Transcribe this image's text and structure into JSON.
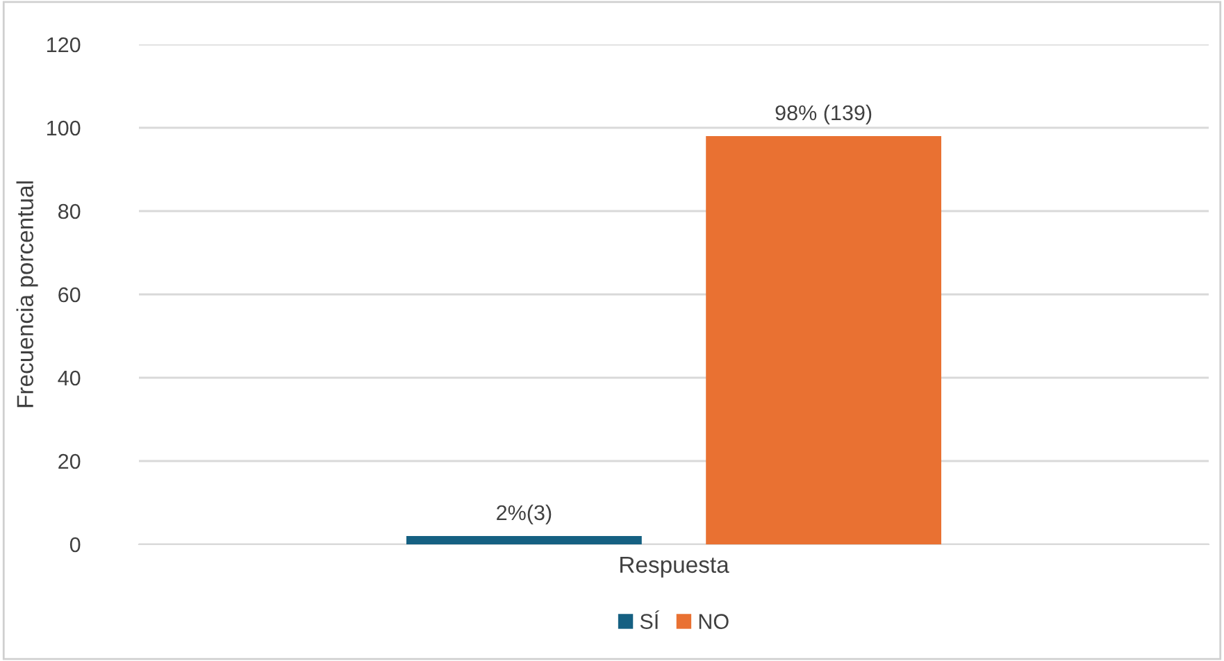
{
  "chart_data": {
    "type": "bar",
    "ylabel": "Frecuencia porcentual",
    "categories": [
      "Respuesta"
    ],
    "series": [
      {
        "name": "SÍ",
        "color": "#156082",
        "values": [
          2
        ],
        "value_labels": [
          "2%(3)"
        ]
      },
      {
        "name": "NO",
        "color": "#e97132",
        "values": [
          98
        ],
        "value_labels": [
          "98% (139)"
        ]
      }
    ],
    "ylim": [
      0,
      120
    ],
    "yticks": [
      0,
      20,
      40,
      60,
      80,
      100,
      120
    ],
    "grid": "y",
    "legend": "bottom"
  }
}
